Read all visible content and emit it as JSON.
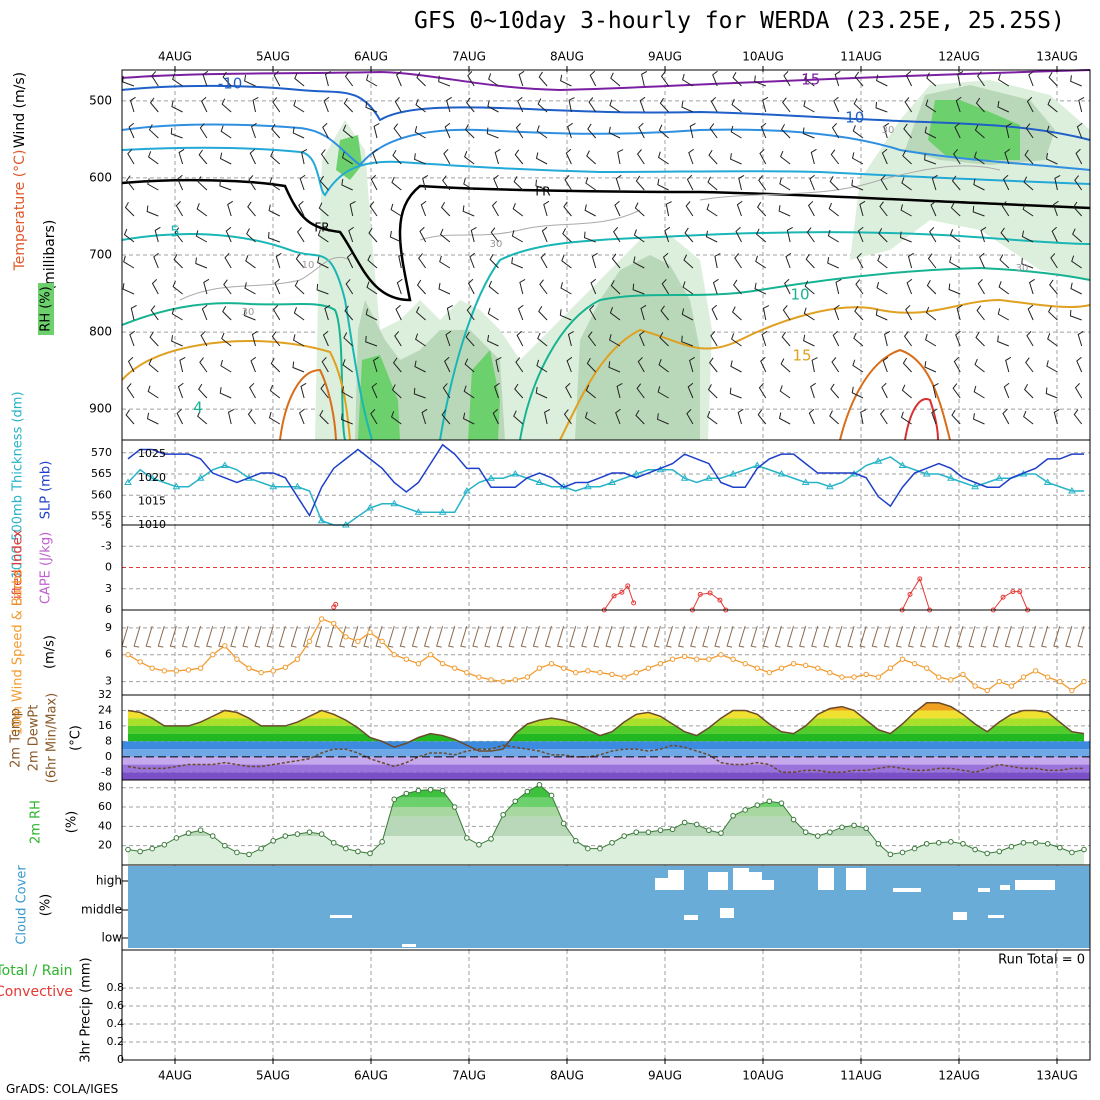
{
  "title": "GFS 0~10day 3-hourly for WERDA (23.25E, 25.25S)",
  "credit": "GrADS: COLA/IGES",
  "dates": [
    "4AUG",
    "5AUG",
    "6AUG",
    "7AUG",
    "8AUG",
    "9AUG",
    "10AUG",
    "11AUG",
    "12AUG",
    "13AUG"
  ],
  "colors": {
    "grid": "#a0a0a0",
    "temp_cold": "#7b1fa2",
    "temp_mid": "#1e5fc8",
    "thick_line": "#27b3c8",
    "slp_line": "#1e3fc8",
    "lifted": "#e53935",
    "wind": "#f29b30",
    "rh_green": "#2db52d",
    "cloud_bg": "#6aacd8",
    "sky_cover": "#ffffff"
  },
  "chart_data": [
    {
      "id": "profile",
      "type": "contour",
      "ylabel_parts": [
        "RH (%)",
        "Temperature (°C)",
        "Wind (m/s)"
      ],
      "ylabel_units": "(millibars)",
      "pressure_ticks": [
        "500",
        "600",
        "700",
        "800",
        "900"
      ],
      "freezing_label": "FR",
      "isotherm_labels": [
        "-15",
        "-10",
        "-10",
        "5",
        "10",
        "15",
        "4"
      ],
      "rh_labels": [
        "30",
        "30",
        "10",
        "30",
        "30"
      ]
    },
    {
      "id": "thickness_slp",
      "type": "line",
      "ylabel_left": "1000-500mb Thickness (dm)",
      "ylabel_right": "SLP (mb)",
      "left_ticks": [
        "555",
        "560",
        "565",
        "570"
      ],
      "right_ticks": [
        "1010",
        "1015",
        "1020",
        "1025"
      ],
      "thickness_ylim": [
        553,
        573
      ],
      "slp_ylim": [
        1010,
        1028
      ],
      "thickness": [
        563,
        566,
        564,
        563,
        562,
        562,
        564,
        566,
        567,
        566,
        564,
        563,
        562,
        562,
        562,
        561,
        554,
        553,
        553,
        555,
        557,
        558,
        558,
        557,
        556,
        556,
        556,
        556,
        561,
        563,
        564,
        564,
        565,
        564,
        563,
        562,
        562,
        561,
        562,
        562,
        563,
        564,
        565,
        566,
        566,
        566,
        564,
        563,
        564,
        564,
        565,
        566,
        567,
        566,
        565,
        564,
        563,
        563,
        562,
        563,
        565,
        567,
        568,
        569,
        567,
        566,
        565,
        565,
        564,
        563,
        562,
        563,
        564,
        564,
        565,
        565,
        563,
        562,
        561,
        561
      ],
      "slp": [
        1024,
        1026,
        1026,
        1025,
        1025,
        1025,
        1024,
        1021,
        1020,
        1019,
        1020,
        1021,
        1021,
        1020,
        1016,
        1012,
        1018,
        1022,
        1024,
        1026,
        1024,
        1022,
        1019,
        1017,
        1019,
        1023,
        1027,
        1025,
        1022,
        1022,
        1018,
        1018,
        1018,
        1020,
        1021,
        1020,
        1018,
        1019,
        1019,
        1020,
        1021,
        1021,
        1020,
        1021,
        1022,
        1023,
        1025,
        1024,
        1023,
        1019,
        1018,
        1018,
        1022,
        1024,
        1025,
        1025,
        1023,
        1021,
        1021,
        1021,
        1021,
        1020,
        1016,
        1014,
        1018,
        1021,
        1022,
        1023,
        1022,
        1020,
        1019,
        1018,
        1018,
        1020,
        1021,
        1022,
        1024,
        1024,
        1025,
        1025
      ]
    },
    {
      "id": "cape_li",
      "type": "line",
      "ylabel_left": "Lifted Index",
      "ylabel_right": "CAPE (J/kg)",
      "left_ticks": [
        "-6",
        "-3",
        "0",
        "3",
        "6"
      ],
      "ylim": [
        -6,
        6
      ],
      "lifted_segments": [
        {
          "x": [
            1.62,
            1.64
          ],
          "y": [
            5.6,
            5.2
          ]
        },
        {
          "x": [
            4.38,
            4.48,
            4.56,
            4.62,
            4.68
          ],
          "y": [
            6.0,
            4.0,
            3.5,
            2.6,
            5.0
          ]
        },
        {
          "x": [
            5.28,
            5.36,
            5.46,
            5.56,
            5.62
          ],
          "y": [
            6.0,
            3.8,
            3.6,
            4.6,
            6.0
          ]
        },
        {
          "x": [
            7.42,
            7.5,
            7.6,
            7.7
          ],
          "y": [
            6.0,
            3.8,
            1.6,
            6.0
          ]
        },
        {
          "x": [
            8.35,
            8.45,
            8.55,
            8.62,
            8.7
          ],
          "y": [
            6.0,
            4.2,
            3.4,
            3.4,
            6.0
          ]
        }
      ]
    },
    {
      "id": "wind10m",
      "type": "line",
      "ylabel_left": "10m Wind Speed & Barbs",
      "ylabel_right": "(m/s)",
      "left_ticks": [
        "3",
        "6",
        "9"
      ],
      "ylim": [
        1.5,
        11
      ],
      "speed": [
        6,
        5.2,
        4.5,
        4.2,
        4.2,
        4.3,
        4.5,
        6,
        7,
        5.5,
        4.5,
        4,
        4.2,
        4.6,
        5.5,
        7.5,
        10,
        9.5,
        8,
        7.5,
        8.5,
        7.5,
        6,
        5.5,
        5,
        6,
        5,
        4.5,
        4,
        3.5,
        3.2,
        3,
        3.2,
        3.5,
        4.5,
        5,
        4.5,
        4,
        4.2,
        4,
        3.8,
        3.5,
        4,
        4.5,
        5,
        5.5,
        5.8,
        5.5,
        5.5,
        6,
        5.5,
        5,
        4.5,
        4,
        4.5,
        5,
        4.8,
        4.5,
        4,
        3.5,
        3.5,
        3.8,
        3.5,
        4.5,
        5.5,
        5,
        4.5,
        3.5,
        3.2,
        3.8,
        2.5,
        2,
        3,
        2.5,
        3.5,
        4.2,
        3.5,
        3,
        2,
        3
      ]
    },
    {
      "id": "temp2m",
      "type": "area",
      "ylabel_parts": [
        "2m Temp",
        "2m DewPt",
        "(6hr Min/Max)"
      ],
      "ylabel_right": "(°C)",
      "left_ticks": [
        "-8",
        "0",
        "8",
        "16",
        "24",
        "32"
      ],
      "ylim": [
        -12,
        32
      ],
      "temp": [
        24,
        23,
        20,
        16,
        16,
        16,
        18,
        21,
        24,
        23,
        20,
        16,
        16,
        16,
        18,
        21,
        24,
        22,
        19,
        15,
        10,
        8,
        5,
        7,
        10,
        12,
        11,
        9,
        6,
        3,
        3,
        4,
        12,
        17,
        19,
        20,
        19,
        17,
        14,
        11,
        13,
        18,
        22,
        23,
        21,
        17,
        13,
        11,
        15,
        20,
        24,
        24,
        22,
        17,
        13,
        12,
        16,
        22,
        25,
        26,
        24,
        19,
        14,
        12,
        17,
        23,
        28,
        28,
        26,
        22,
        17,
        13,
        18,
        22,
        24,
        24,
        23,
        18,
        13,
        12
      ],
      "dewpt": [
        -5,
        -6,
        -6,
        -6,
        -5,
        -4,
        -4,
        -4,
        -3,
        -4,
        -5,
        -5,
        -4,
        -3,
        -2,
        -1,
        2,
        4,
        4,
        2,
        -1,
        -3,
        -5,
        -3,
        0,
        2,
        2,
        1,
        3,
        4,
        4,
        6,
        5,
        4,
        3,
        1,
        1,
        0,
        0,
        1,
        3,
        4,
        4,
        3,
        4,
        6,
        5,
        3,
        1,
        -3,
        -4,
        -4,
        -3,
        -4,
        -8,
        -8,
        -7,
        -7,
        -8,
        -8,
        -7,
        -7,
        -6,
        -5,
        -6,
        -7,
        -7,
        -6,
        -6,
        -7,
        -8,
        -6,
        -4,
        -5,
        -6,
        -6,
        -7,
        -7,
        -6,
        -6
      ]
    },
    {
      "id": "rh2m",
      "type": "area",
      "ylabel_left": "2m RH",
      "ylabel_right": "(%)",
      "left_ticks": [
        "20",
        "40",
        "60",
        "80"
      ],
      "ylim": [
        0,
        88
      ],
      "rh": [
        16,
        14,
        17,
        21,
        28,
        33,
        36,
        30,
        20,
        13,
        11,
        17,
        25,
        30,
        32,
        34,
        32,
        23,
        17,
        14,
        12,
        24,
        68,
        74,
        77,
        78,
        77,
        60,
        28,
        21,
        27,
        52,
        66,
        76,
        83,
        72,
        43,
        25,
        17,
        17,
        23,
        30,
        34,
        34,
        36,
        37,
        44,
        42,
        36,
        33,
        51,
        57,
        62,
        66,
        64,
        47,
        34,
        30,
        34,
        39,
        41,
        38,
        22,
        11,
        13,
        17,
        22,
        23,
        24,
        22,
        16,
        12,
        14,
        19,
        23,
        23,
        22,
        18,
        13,
        16
      ]
    },
    {
      "id": "cloud",
      "type": "heatmap",
      "ylabel_left": "Cloud Cover",
      "ylabel_right": "(%)",
      "levels": [
        "high",
        "middle",
        "low"
      ]
    },
    {
      "id": "precip",
      "type": "bar",
      "ylabel_left": "Total / Rain",
      "ylabel_left2": "Convective",
      "ylabel_right": "3hr Precip (mm)",
      "left_ticks": [
        "0",
        "0.2",
        "0.4",
        "0.6",
        "0.8"
      ],
      "ylim": [
        0,
        1
      ],
      "run_total": "Run Total = 0",
      "values": []
    }
  ]
}
